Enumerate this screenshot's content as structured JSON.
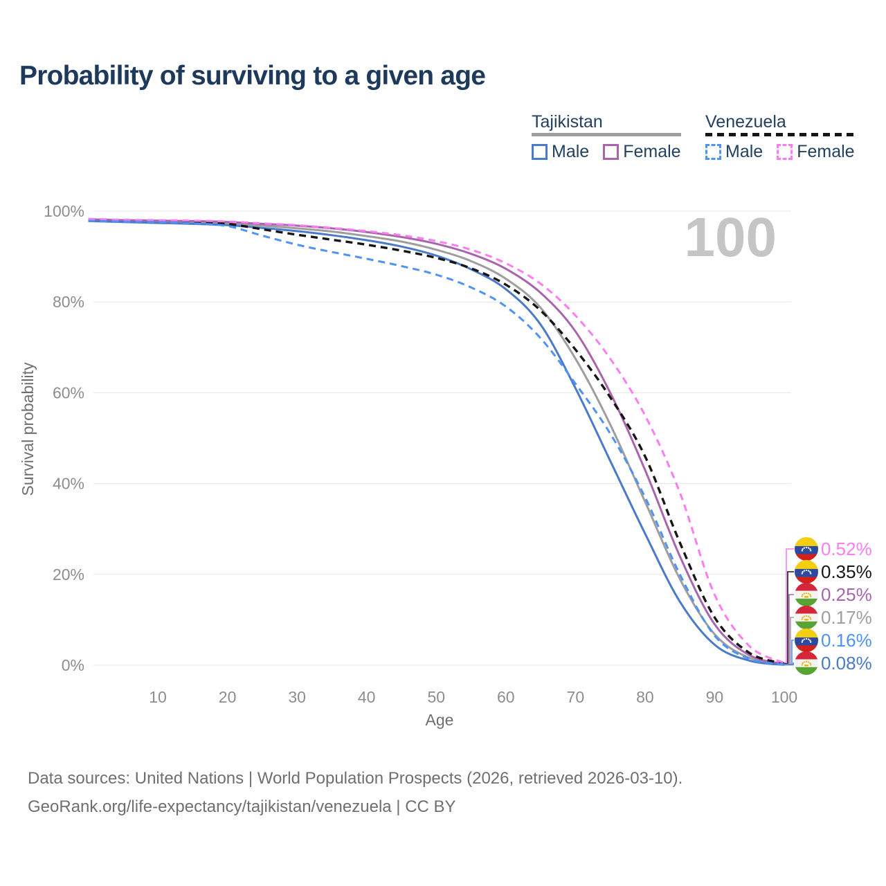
{
  "title": "Probability of surviving to a given age",
  "legend": {
    "groups": [
      {
        "name": "Tajikistan",
        "style": "solid",
        "underline_color": "#9e9e9e",
        "items": [
          {
            "label": "Male",
            "color": "#4A7AC9",
            "dashed": false
          },
          {
            "label": "Female",
            "color": "#A964AE",
            "dashed": false
          }
        ]
      },
      {
        "name": "Venezuela",
        "style": "dashed",
        "underline_color": "#161616",
        "items": [
          {
            "label": "Male",
            "color": "#4E93F7",
            "dashed": true
          },
          {
            "label": "Female",
            "color": "#FB7DF0",
            "dashed": true
          }
        ]
      }
    ]
  },
  "chart_data": {
    "type": "line",
    "title": "Probability of surviving to a given age",
    "xlabel": "Age",
    "ylabel": "Survival probability",
    "xlim": [
      0,
      100
    ],
    "ylim_percent": [
      0,
      100
    ],
    "x_ticks": [
      10,
      20,
      30,
      40,
      50,
      60,
      70,
      80,
      90,
      100
    ],
    "y_ticks_percent": [
      0,
      20,
      40,
      60,
      80,
      100
    ],
    "y_tick_suffix": "%",
    "grid": "horizontal",
    "watermark": "100",
    "x": [
      0,
      5,
      10,
      15,
      20,
      25,
      30,
      35,
      40,
      45,
      50,
      55,
      60,
      65,
      70,
      75,
      80,
      85,
      90,
      95,
      100
    ],
    "series": [
      {
        "key": "tajikistan_avg",
        "name": "Tajikistan",
        "color": "#9E9E9E",
        "dashed": false,
        "values": [
          98.0,
          97.8,
          97.7,
          97.5,
          97.3,
          96.8,
          96.2,
          95.5,
          94.5,
          93.3,
          91.5,
          89.0,
          85.1,
          78.7,
          67.5,
          53.0,
          36.0,
          19.0,
          6.8,
          1.6,
          0.17
        ]
      },
      {
        "key": "tajikistan_female",
        "name": "Tajikistan Female",
        "color": "#A964AE",
        "dashed": false,
        "values": [
          98.2,
          98.0,
          97.9,
          97.8,
          97.6,
          97.2,
          96.8,
          96.2,
          95.4,
          94.3,
          92.8,
          90.6,
          87.3,
          82.0,
          73.5,
          60.0,
          43.0,
          24.0,
          9.0,
          2.2,
          0.25
        ]
      },
      {
        "key": "tajikistan_male",
        "name": "Tajikistan Male",
        "color": "#4A7AC9",
        "dashed": false,
        "values": [
          97.8,
          97.6,
          97.4,
          97.2,
          96.9,
          96.3,
          95.6,
          94.7,
          93.6,
          92.2,
          90.2,
          87.2,
          82.8,
          75.0,
          61.0,
          45.0,
          29.0,
          14.0,
          4.5,
          1.0,
          0.08
        ]
      },
      {
        "key": "venezuela_avg",
        "name": "Venezuela",
        "color": "#161616",
        "dashed": true,
        "values": [
          98.1,
          97.9,
          97.8,
          97.6,
          97.2,
          96.0,
          94.8,
          93.7,
          92.6,
          91.3,
          89.7,
          87.4,
          83.8,
          78.1,
          69.5,
          59.0,
          46.0,
          27.0,
          10.5,
          2.7,
          0.35
        ]
      },
      {
        "key": "venezuela_female",
        "name": "Venezuela Female",
        "color": "#FB7DF0",
        "dashed": true,
        "values": [
          98.3,
          98.1,
          98.0,
          97.9,
          97.7,
          97.3,
          96.9,
          96.3,
          95.6,
          94.7,
          93.4,
          91.5,
          88.5,
          84.0,
          77.0,
          67.5,
          55.0,
          38.0,
          15.5,
          4.2,
          0.52
        ]
      },
      {
        "key": "venezuela_male",
        "name": "Venezuela Male",
        "color": "#4E93F7",
        "dashed": true,
        "values": [
          97.9,
          97.7,
          97.6,
          97.3,
          96.7,
          94.6,
          92.6,
          91.0,
          89.5,
          87.9,
          86.0,
          83.2,
          79.0,
          72.0,
          62.0,
          51.0,
          37.0,
          20.0,
          6.5,
          1.4,
          0.16
        ]
      }
    ],
    "end_labels": [
      {
        "text": "0.52%",
        "series": "venezuela_female",
        "flag": "venezuela",
        "color": "#FB7DF0"
      },
      {
        "text": "0.35%",
        "series": "venezuela_avg",
        "flag": "venezuela",
        "color": "#161616"
      },
      {
        "text": "0.25%",
        "series": "tajikistan_female",
        "flag": "tajikistan",
        "color": "#A964AE"
      },
      {
        "text": "0.17%",
        "series": "tajikistan_avg",
        "flag": "tajikistan",
        "color": "#9E9E9E"
      },
      {
        "text": "0.16%",
        "series": "venezuela_male",
        "flag": "venezuela",
        "color": "#4E93F7"
      },
      {
        "text": "0.08%",
        "series": "tajikistan_male",
        "flag": "tajikistan",
        "color": "#4A7AC9"
      }
    ],
    "flags": {
      "venezuela": {
        "stripes": [
          "#F5CE12",
          "#2B4AA0",
          "#D32019"
        ],
        "emblem": "#FFFFFF"
      },
      "tajikistan": {
        "stripes": [
          "#D5273B",
          "#F4F4F2",
          "#59A334"
        ],
        "emblem": "#E9B912"
      }
    }
  },
  "footer": {
    "line1": "Data sources: United Nations | World Population Prospects (2026, retrieved 2026-03-10).",
    "line2": "GeoRank.org/life-expectancy/tajikistan/venezuela | CC BY"
  }
}
